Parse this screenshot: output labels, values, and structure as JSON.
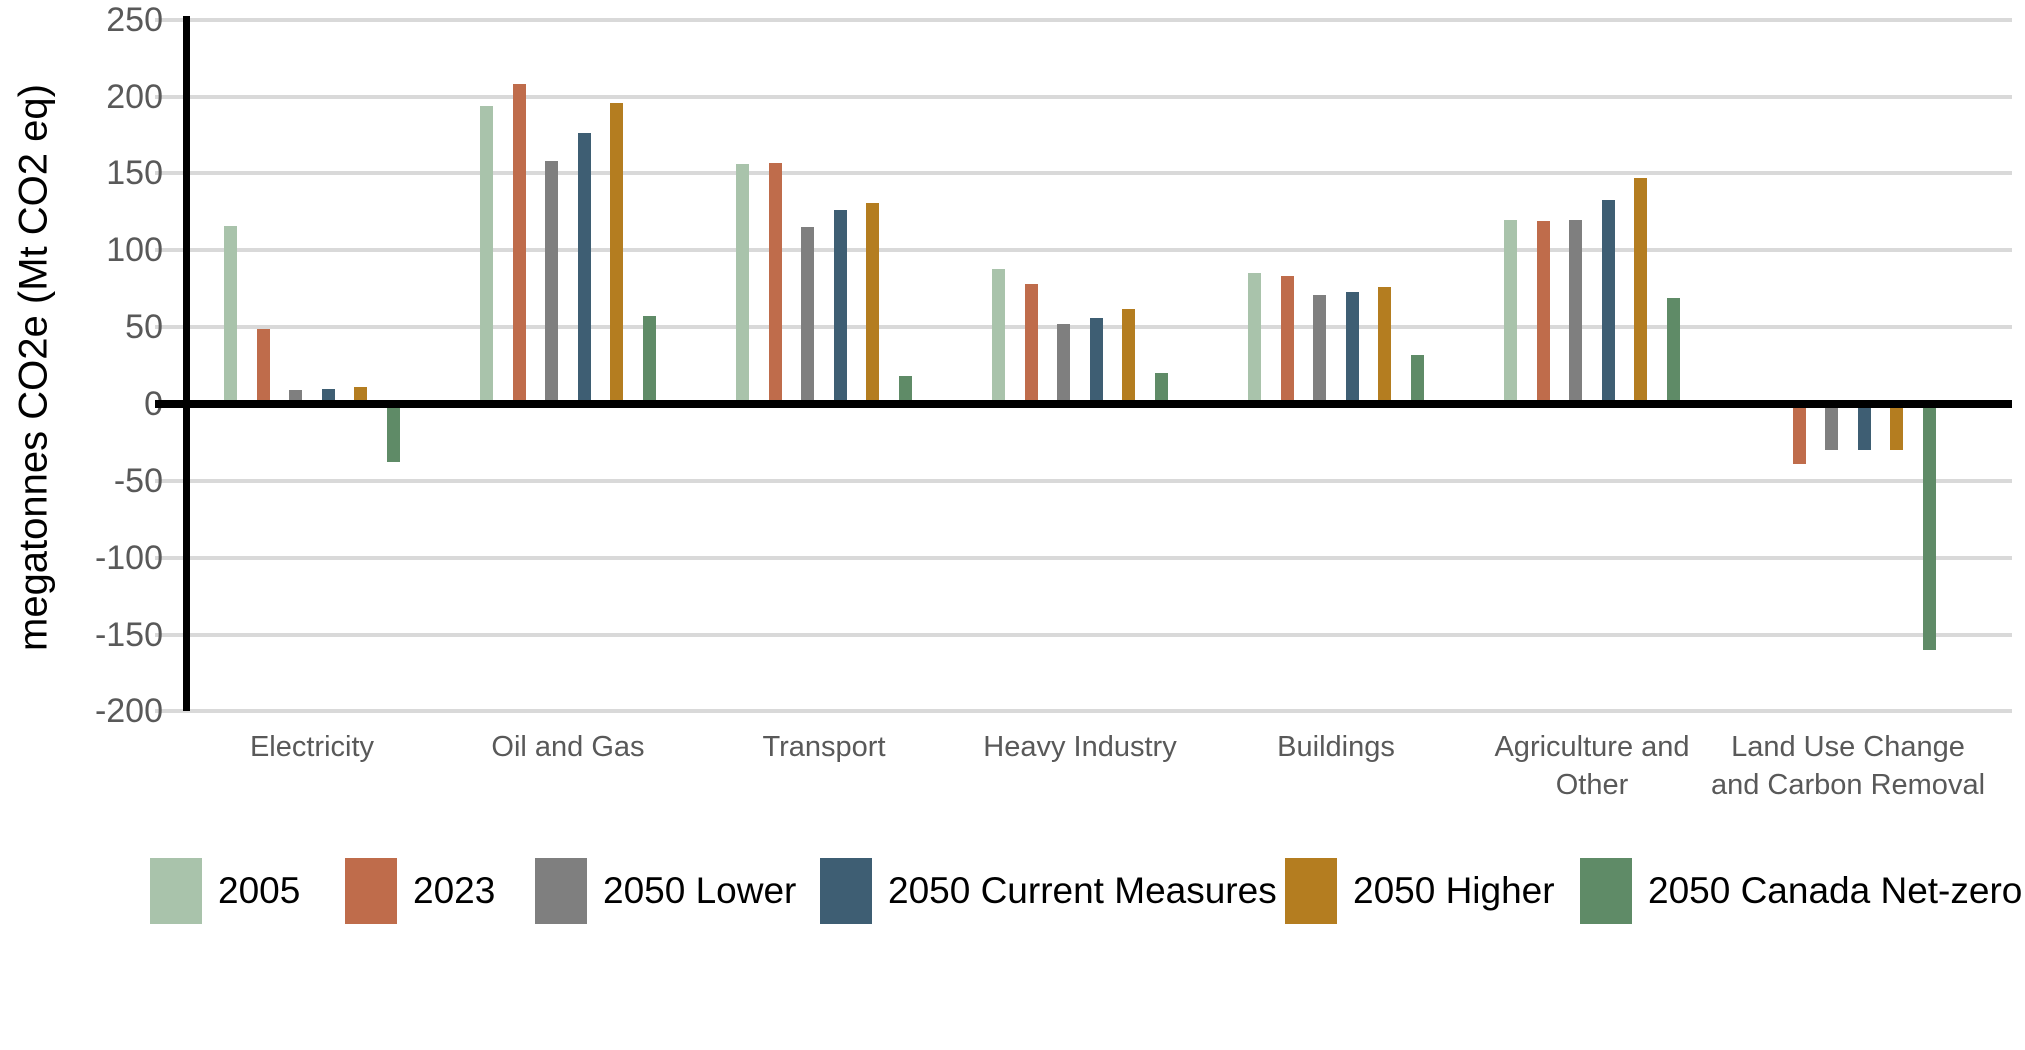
{
  "chart_data": {
    "type": "bar",
    "title": "",
    "xlabel": "",
    "ylabel": "megatonnes CO2e (Mt CO2 eq)",
    "ylim": [
      -200,
      250
    ],
    "ytick_step": 50,
    "yticks": [
      250,
      200,
      150,
      100,
      50,
      0,
      -50,
      -100,
      -150,
      -200
    ],
    "ytick_labels": [
      "250",
      "200",
      "150",
      "100",
      "50",
      "0",
      "-50",
      "-100",
      "-150",
      "-200"
    ],
    "grid": true,
    "legend_position": "bottom",
    "categories": [
      "Electricity",
      "Oil and Gas",
      "Transport",
      "Heavy Industry",
      "Buildings",
      "Agriculture and\nOther",
      "Land Use Change\nand Carbon Removal"
    ],
    "series": [
      {
        "name": "2005",
        "color": "#a9c3ab",
        "values": [
          116,
          194,
          156,
          88,
          85,
          120,
          null
        ]
      },
      {
        "name": "2023",
        "color": "#bf6c4b",
        "values": [
          49,
          208,
          157,
          78,
          83,
          119,
          -39
        ]
      },
      {
        "name": "2050 Lower",
        "color": "#7f7f7f",
        "values": [
          9,
          158,
          115,
          52,
          71,
          120,
          -30
        ]
      },
      {
        "name": "2050 Current Measures",
        "color": "#3e5e73",
        "values": [
          10,
          176,
          126,
          56,
          73,
          133,
          -30
        ]
      },
      {
        "name": "2050 Higher",
        "color": "#b47d20",
        "values": [
          11,
          196,
          131,
          62,
          76,
          147,
          -30
        ]
      },
      {
        "name": "2050 Canada Net-zero",
        "color": "#5f8b67",
        "values": [
          -38,
          57,
          18,
          20,
          32,
          69,
          -160
        ]
      }
    ]
  },
  "colors": {
    "background": "#ffffff",
    "gridline": "#d9d9d9",
    "axis": "#000000",
    "tick_label": "#595959",
    "category_label": "#595959",
    "legend_label": "#000000"
  }
}
